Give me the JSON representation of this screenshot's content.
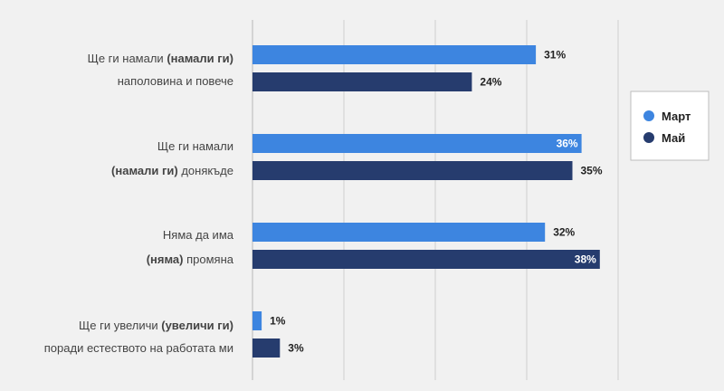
{
  "chart_data": {
    "type": "bar",
    "orientation": "horizontal",
    "categories": [
      {
        "lines": [
          [
            {
              "t": "Ще ги намали ",
              "b": false
            },
            {
              "t": "(намали ги)",
              "b": true
            }
          ],
          [
            {
              "t": "наполовина и повече",
              "b": false
            }
          ]
        ]
      },
      {
        "lines": [
          [
            {
              "t": "Ще ги намали",
              "b": false
            }
          ],
          [
            {
              "t": "(намали ги)",
              "b": true
            },
            {
              "t": " донякъде",
              "b": false
            }
          ]
        ]
      },
      {
        "lines": [
          [
            {
              "t": "Няма да има",
              "b": false
            }
          ],
          [
            {
              "t": "(няма)",
              "b": true
            },
            {
              "t": " промяна",
              "b": false
            }
          ]
        ]
      },
      {
        "lines": [
          [
            {
              "t": "Ще ги увеличи ",
              "b": false
            },
            {
              "t": "(увеличи ги)",
              "b": true
            }
          ],
          [
            {
              "t": "поради естеството на работата ми",
              "b": false
            }
          ]
        ]
      }
    ],
    "series": [
      {
        "name": "Март",
        "color": "#3d85e0",
        "values": [
          31,
          36,
          32,
          1
        ],
        "labels": [
          "31%",
          "36%",
          "32%",
          "1%"
        ]
      },
      {
        "name": "Май",
        "color": "#263c6e",
        "values": [
          24,
          35,
          38,
          3
        ],
        "labels": [
          "24%",
          "35%",
          "38%",
          "3%"
        ]
      }
    ],
    "xlim": [
      0,
      40
    ],
    "grid": true,
    "legend_position": "right"
  }
}
